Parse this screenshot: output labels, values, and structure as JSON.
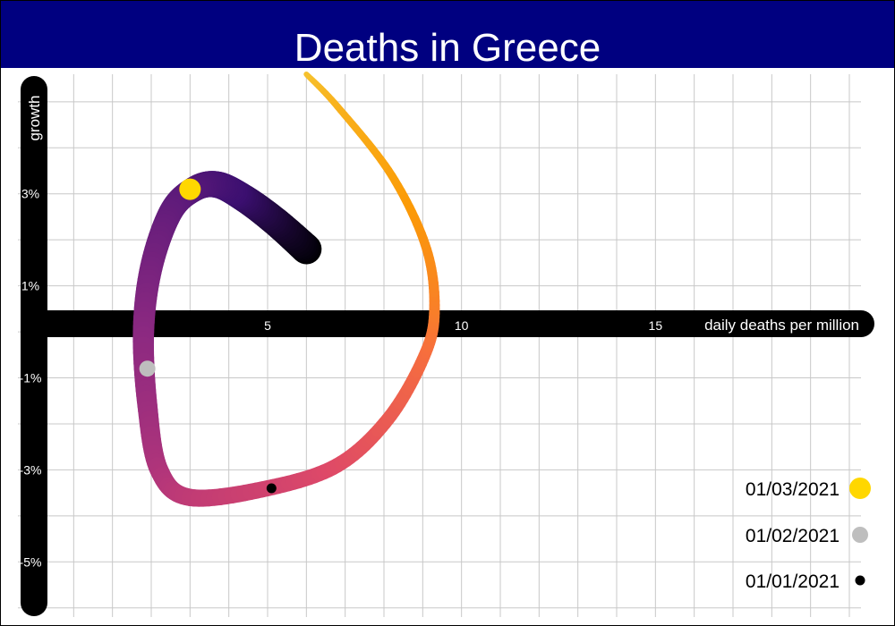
{
  "title": "Deaths in Greece",
  "colors": {
    "title_bar": "#000080",
    "axis": "#000000",
    "grid": "#c8c8c8",
    "frame": "#000000",
    "marker_01_03": "#ffd700",
    "marker_01_02": "#bebebe",
    "marker_01_01": "#000000",
    "path_gradient": [
      "#000004",
      "#3b0f70",
      "#5c1a7a",
      "#8c2981",
      "#b73779",
      "#de4968",
      "#f76f3c",
      "#fb9b06",
      "#f6c22e"
    ]
  },
  "chart_data": {
    "type": "line",
    "title": "Deaths in Greece",
    "xlabel": "daily deaths per million",
    "ylabel": "growth",
    "x_ticks": [
      "5",
      "10",
      "15"
    ],
    "y_ticks": [
      "3%",
      "1%",
      "-1%",
      "-3%",
      "-5%"
    ],
    "x_tick_values": [
      5,
      10,
      15
    ],
    "y_tick_values": [
      3,
      1,
      -1,
      -3,
      -5
    ],
    "xlim": [
      -0.7,
      20.3
    ],
    "ylim": [
      -6.2,
      5.6
    ],
    "grid": true,
    "legend_position": "bottom-right",
    "series": [
      {
        "points": [
          [
            6.0,
            1.8
          ],
          [
            5.2,
            2.4
          ],
          [
            4.4,
            2.9
          ],
          [
            3.7,
            3.2
          ],
          [
            3.1,
            3.1
          ],
          [
            2.5,
            2.6
          ],
          [
            2.0,
            1.4
          ],
          [
            1.8,
            0.0
          ],
          [
            1.9,
            -1.6
          ],
          [
            2.2,
            -3.0
          ],
          [
            3.0,
            -3.6
          ],
          [
            5.0,
            -3.4
          ],
          [
            6.8,
            -2.9
          ],
          [
            8.1,
            -1.9
          ],
          [
            9.0,
            -0.6
          ],
          [
            9.3,
            0.4
          ],
          [
            9.1,
            1.8
          ],
          [
            8.2,
            3.4
          ],
          [
            6.8,
            4.9
          ],
          [
            6.0,
            5.6
          ]
        ]
      }
    ],
    "markers": [
      {
        "label": "01/03/2021",
        "x": 3.0,
        "y": 3.1,
        "color": "#ffd700",
        "size": "large"
      },
      {
        "label": "01/02/2021",
        "x": 1.9,
        "y": -0.8,
        "color": "#bebebe",
        "size": "medium"
      },
      {
        "label": "01/01/2021",
        "x": 5.1,
        "y": -3.4,
        "color": "#000000",
        "size": "small"
      }
    ]
  }
}
